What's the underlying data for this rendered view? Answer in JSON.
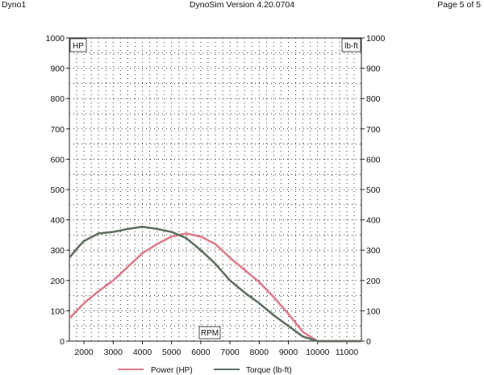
{
  "header": {
    "left": "Dyno1",
    "center": "DynoSim  Version 4.20.0704",
    "right": "Page 5 of 5"
  },
  "chart_data": {
    "type": "line",
    "xlabel": "RPM",
    "ylabel_left": "HP",
    "ylabel_right": "lb-ft",
    "xlim": [
      1500,
      11500
    ],
    "ylim": [
      0,
      1000
    ],
    "x_ticks": [
      2000,
      3000,
      4000,
      5000,
      6000,
      7000,
      8000,
      9000,
      10000,
      11000
    ],
    "y_ticks": [
      0,
      100,
      200,
      300,
      400,
      500,
      600,
      700,
      800,
      900,
      1000
    ],
    "grid": true,
    "legend_position": "bottom",
    "series": [
      {
        "name": "Power (HP)",
        "color": "#e07b8a",
        "x": [
          1500,
          2000,
          2500,
          3000,
          3500,
          4000,
          4500,
          5000,
          5500,
          6000,
          6500,
          7000,
          7500,
          8000,
          8500,
          9000,
          9500,
          10000,
          10500,
          11000,
          11500
        ],
        "values": [
          75,
          125,
          165,
          200,
          245,
          290,
          320,
          345,
          355,
          345,
          320,
          275,
          235,
          195,
          145,
          90,
          30,
          0,
          0,
          0,
          0
        ]
      },
      {
        "name": "Torque (lb-ft)",
        "color": "#5e7060",
        "x": [
          1500,
          1800,
          2000,
          2500,
          3000,
          3500,
          4000,
          4500,
          5000,
          5500,
          6000,
          6500,
          7000,
          7500,
          8000,
          8500,
          9000,
          9500,
          10000,
          10500,
          11000,
          11500
        ],
        "values": [
          275,
          310,
          330,
          355,
          360,
          370,
          377,
          370,
          360,
          340,
          300,
          255,
          200,
          160,
          125,
          85,
          50,
          15,
          0,
          0,
          0,
          0
        ]
      }
    ]
  }
}
